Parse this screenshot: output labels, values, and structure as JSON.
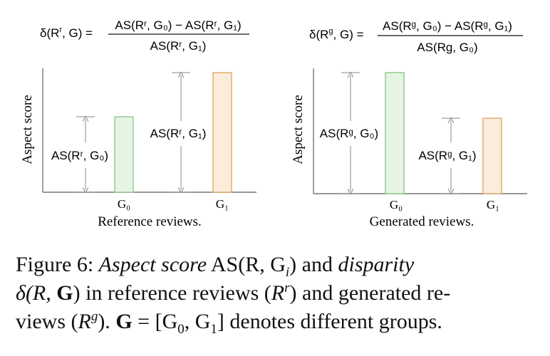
{
  "left_panel": {
    "formula_lhs": "δ(R",
    "formula_lhs_sup": "r",
    "formula_lhs_tail": ", G) =",
    "numerator": "AS(Rʳ, G₀) − AS(Rʳ, G₁)",
    "denominator": "AS(Rʳ, G₁)",
    "ylabel": "Aspect score",
    "annotation_g0": "AS(Rʳ, G₀)",
    "annotation_g1": "AS(Rʳ, G₁)",
    "tick_g0": "G₀",
    "tick_g1": "G₁",
    "xlabel": "Reference reviews."
  },
  "right_panel": {
    "formula_lhs": "δ(R",
    "formula_lhs_sup": "g",
    "formula_lhs_tail": ", G) =",
    "numerator": "AS(Rᵍ, G₀) − AS(Rᵍ, G₁)",
    "denominator": "AS(Rg, G₀)",
    "ylabel": "Aspect score",
    "annotation_g0": "AS(Rᵍ, G₀)",
    "annotation_g1": "AS(Rᵍ, G₁)",
    "tick_g0": "G₀",
    "tick_g1": "G₁",
    "xlabel": "Generated reviews."
  },
  "colors": {
    "g0_fill": "#e6f4e4",
    "g0_stroke": "#8cc98a",
    "g1_fill": "#fbecdc",
    "g1_stroke": "#e4a866",
    "axis": "#777777",
    "arrow": "#888888"
  },
  "caption": {
    "line1_prefix": "Figure 6: ",
    "line1_em1": "Aspect score",
    "line1_math": " AS(R, G",
    "line1_math_sub": "i",
    "line1_math_close": ")",
    "line1_and": " and ",
    "line1_em2": "disparity",
    "line2_math": "δ(R, ",
    "line2_bold": "G",
    "line2_math_close": ")",
    "line2_text": " in reference reviews (",
    "line2_R": "R",
    "line2_sup": "r",
    "line2_tail": ") and generated re-",
    "line3_text1": "views (",
    "line3_R": "R",
    "line3_sup": "g",
    "line3_text2": "). ",
    "line3_bold": "G",
    "line3_eq": " = [G",
    "line3_sub0": "0",
    "line3_comma": ", G",
    "line3_sub1": "1",
    "line3_tail": "] denotes different groups."
  }
}
